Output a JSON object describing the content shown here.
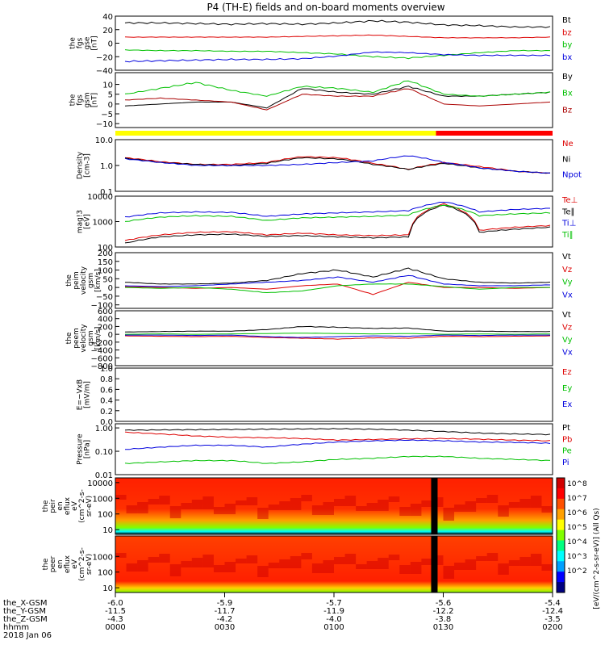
{
  "chart_data": {
    "title": "P4 (TH-E) fields and on-board moments overview",
    "type": "line",
    "x_range": [
      "00:00",
      "02:00"
    ],
    "date": "2018 Jan 06",
    "ephemeris": {
      "rows": [
        {
          "label": "the_X-GSM",
          "values": [
            "-6.0",
            "-5.9",
            "-5.7",
            "-5.6",
            "-5.4"
          ]
        },
        {
          "label": "the_Y-GSM",
          "values": [
            "-11.5",
            "-11.7",
            "-11.9",
            "-12.2",
            "-12.4"
          ]
        },
        {
          "label": "the_Z-GSM",
          "values": [
            "-4.3",
            "-4.2",
            "-4.0",
            "-3.8",
            "-3.5"
          ]
        },
        {
          "label": "hhmm",
          "values": [
            "0000",
            "0030",
            "0100",
            "0130",
            "0200"
          ]
        }
      ]
    },
    "panels": [
      {
        "ylabel": [
          "the",
          "fgs",
          "gse",
          "[nT]"
        ],
        "ylim": [
          -40,
          40
        ],
        "scale": "linear",
        "ticks": [
          "40",
          "20",
          "0",
          "−20",
          "−40"
        ],
        "tick_values": [
          40,
          20,
          0,
          -20,
          -40
        ],
        "series": [
          {
            "name": "Bt",
            "color": "#000000",
            "values": [
              30,
              30,
              29,
              28,
              29,
              28,
              30,
              33,
              31,
              27,
              26,
              24,
              24
            ]
          },
          {
            "name": "bz",
            "color": "#dd0000",
            "values": [
              9,
              9,
              9,
              9,
              9,
              10,
              11,
              12,
              10,
              8,
              8,
              8,
              9
            ]
          },
          {
            "name": "by",
            "color": "#00c000",
            "values": [
              -10,
              -11,
              -11,
              -12,
              -12,
              -14,
              -16,
              -20,
              -22,
              -18,
              -14,
              -11,
              -11
            ]
          },
          {
            "name": "bx",
            "color": "#0000dd",
            "values": [
              -27,
              -26,
              -25,
              -24,
              -24,
              -23,
              -19,
              -13,
              -14,
              -17,
              -18,
              -18,
              -18
            ]
          }
        ]
      },
      {
        "ylabel": [
          "the",
          "fgs",
          "gsm",
          "[nT]"
        ],
        "ylim": [
          -12,
          16
        ],
        "scale": "linear",
        "ticks": [
          "10",
          "5",
          "0",
          "−5",
          "−10"
        ],
        "tick_values": [
          10,
          5,
          0,
          -5,
          -10
        ],
        "series": [
          {
            "name": "By",
            "color": "#000000",
            "values": [
              -1,
              0,
              1,
              1,
              -2,
              8,
              6,
              5,
              9,
              4,
              4,
              5,
              6
            ]
          },
          {
            "name": "Bx",
            "color": "#00c000",
            "values": [
              5,
              8,
              11,
              7,
              4,
              9,
              8,
              6,
              12,
              5,
              4,
              5,
              6
            ]
          },
          {
            "name": "Bz",
            "color": "#aa0000",
            "values": [
              2,
              3,
              2,
              1,
              -3,
              5,
              4,
              4,
              8,
              0,
              -1,
              0,
              1
            ]
          }
        ]
      },
      {
        "ylabel": [
          "Density",
          "[cm-3]"
        ],
        "ylim": [
          0.1,
          10
        ],
        "scale": "log",
        "ticks": [
          "10.0",
          "1.0",
          "0.1"
        ],
        "tick_values": [
          10,
          1,
          0.1
        ],
        "series": [
          {
            "name": "Ne",
            "color": "#dd0000",
            "values": [
              2.0,
              1.4,
              1.1,
              1.1,
              1.3,
              2.2,
              2.0,
              1.2,
              0.7,
              1.3,
              0.9,
              0.6,
              0.5
            ]
          },
          {
            "name": "Ni",
            "color": "#000000",
            "values": [
              1.9,
              1.3,
              1.1,
              1.0,
              1.2,
              2.0,
              1.8,
              1.1,
              0.7,
              1.2,
              0.8,
              0.6,
              0.5
            ]
          },
          {
            "name": "Npot",
            "color": "#0000dd",
            "values": [
              1.8,
              1.3,
              1.0,
              1.0,
              1.0,
              1.1,
              1.3,
              1.5,
              2.4,
              1.3,
              0.8,
              0.6,
              0.5
            ]
          }
        ]
      },
      {
        "ylabel": [
          "mag!3",
          "[eV]"
        ],
        "ylim": [
          100,
          10000
        ],
        "scale": "log",
        "ticks": [
          "10000",
          "1000",
          "100"
        ],
        "tick_values": [
          10000,
          1000,
          100
        ],
        "series": [
          {
            "name": "Te⊥",
            "color": "#dd0000",
            "values": [
              180,
              300,
              380,
              400,
              300,
              350,
              300,
              280,
              300,
              5000,
              450,
              600,
              700
            ]
          },
          {
            "name": "Te∥",
            "color": "#000000",
            "values": [
              140,
              250,
              300,
              320,
              260,
              280,
              250,
              230,
              250,
              4500,
              380,
              500,
              600
            ]
          },
          {
            "name": "Ti⊥",
            "color": "#0000dd",
            "values": [
              1500,
              2200,
              2400,
              2300,
              1600,
              2000,
              2200,
              2400,
              2700,
              6000,
              2400,
              3000,
              3300
            ]
          },
          {
            "name": "Ti∥",
            "color": "#00c000",
            "values": [
              1000,
              1500,
              1700,
              1600,
              1100,
              1400,
              1500,
              1600,
              1800,
              4500,
              1700,
              2000,
              2200
            ]
          }
        ]
      },
      {
        "ylabel": [
          "the",
          "peim",
          "velocity",
          "gsm",
          "[km/s]"
        ],
        "ylim": [
          -120,
          200
        ],
        "scale": "linear",
        "ticks": [
          "200",
          "150",
          "100",
          "50",
          "0",
          "−50",
          "−100"
        ],
        "tick_values": [
          200,
          150,
          100,
          50,
          0,
          -50,
          -100
        ],
        "series": [
          {
            "name": "Vt",
            "color": "#000000",
            "values": [
              30,
              20,
              20,
              25,
              40,
              80,
              100,
              60,
              110,
              50,
              30,
              25,
              30
            ]
          },
          {
            "name": "Vz",
            "color": "#dd0000",
            "values": [
              5,
              0,
              -5,
              0,
              -10,
              10,
              20,
              -40,
              30,
              0,
              0,
              -5,
              0
            ]
          },
          {
            "name": "Vy",
            "color": "#00c000",
            "values": [
              0,
              -5,
              0,
              -10,
              -30,
              -20,
              10,
              20,
              20,
              5,
              -10,
              0,
              0
            ]
          },
          {
            "name": "Vx",
            "color": "#0000dd",
            "values": [
              10,
              5,
              10,
              20,
              30,
              40,
              60,
              30,
              70,
              20,
              10,
              10,
              15
            ]
          }
        ]
      },
      {
        "ylabel": [
          "the",
          "peem",
          "velocity",
          "gsm",
          "[km/s]"
        ],
        "ylim": [
          -800,
          600
        ],
        "scale": "linear",
        "ticks": [
          "600",
          "400",
          "200",
          "0",
          "−200",
          "−400",
          "−600",
          "−800"
        ],
        "tick_values": [
          600,
          400,
          200,
          0,
          -200,
          -400,
          -600,
          -800
        ],
        "series": [
          {
            "name": "Vt",
            "color": "#000000",
            "values": [
              60,
              70,
              80,
              80,
              120,
              200,
              180,
              150,
              160,
              80,
              80,
              70,
              70
            ]
          },
          {
            "name": "Vz",
            "color": "#dd0000",
            "values": [
              -40,
              -50,
              -60,
              -50,
              -80,
              -100,
              -120,
              -90,
              -100,
              -50,
              -60,
              -50,
              -40
            ]
          },
          {
            "name": "Vy",
            "color": "#00c000",
            "values": [
              0,
              10,
              0,
              10,
              20,
              30,
              20,
              10,
              20,
              0,
              10,
              0,
              10
            ]
          },
          {
            "name": "Vx",
            "color": "#0000dd",
            "values": [
              -20,
              -20,
              -30,
              -20,
              -60,
              -80,
              -60,
              -40,
              -50,
              -20,
              -30,
              -20,
              -20
            ]
          }
        ]
      },
      {
        "ylabel": [
          "E=−VxB",
          "[mV/m]"
        ],
        "ylim": [
          0,
          1
        ],
        "scale": "linear",
        "ticks": [
          "1.0",
          "0.8",
          "0.6",
          "0.4",
          "0.2",
          "0.0"
        ],
        "tick_values": [
          1.0,
          0.8,
          0.6,
          0.4,
          0.2,
          0.0
        ],
        "series": [
          {
            "name": "Ez",
            "color": "#dd0000",
            "values": []
          },
          {
            "name": "Ey",
            "color": "#00c000",
            "values": []
          },
          {
            "name": "Ex",
            "color": "#0000dd",
            "values": []
          }
        ]
      },
      {
        "ylabel": [
          "Pressure",
          "[nPa]"
        ],
        "ylim": [
          0.01,
          1.5
        ],
        "scale": "log",
        "ticks": [
          "1.00",
          "0.10",
          "0.01"
        ],
        "tick_values": [
          1,
          0.1,
          0.01
        ],
        "series": [
          {
            "name": "Pt",
            "color": "#000000",
            "values": [
              0.8,
              0.82,
              0.84,
              0.86,
              0.88,
              0.9,
              0.92,
              0.88,
              0.8,
              0.7,
              0.6,
              0.55,
              0.52
            ]
          },
          {
            "name": "Pb",
            "color": "#dd0000",
            "values": [
              0.65,
              0.55,
              0.45,
              0.4,
              0.38,
              0.35,
              0.3,
              0.32,
              0.34,
              0.35,
              0.33,
              0.3,
              0.28
            ]
          },
          {
            "name": "Pe",
            "color": "#00c000",
            "values": [
              0.03,
              0.035,
              0.04,
              0.04,
              0.03,
              0.035,
              0.045,
              0.05,
              0.06,
              0.06,
              0.05,
              0.045,
              0.04
            ]
          },
          {
            "name": "Pi",
            "color": "#0000dd",
            "values": [
              0.12,
              0.15,
              0.18,
              0.18,
              0.15,
              0.2,
              0.25,
              0.28,
              0.3,
              0.28,
              0.25,
              0.24,
              0.22
            ]
          }
        ]
      }
    ],
    "state_bar": {
      "colors": [
        "#ffff00",
        "#ff0000"
      ],
      "split_time": "01:28"
    },
    "spectrograms": [
      {
        "ylabel": [
          "the",
          "peir",
          "en",
          "eflux",
          "eV",
          "(cm^2-s-",
          "sr-eV)"
        ],
        "ticks": [
          "10000",
          "1000",
          "100",
          "10"
        ],
        "tick_values": [
          10000,
          1000,
          100,
          10
        ]
      },
      {
        "ylabel": [
          "the",
          "peer",
          "en",
          "eflux",
          "eV",
          "(cm^2-s-",
          "sr-eV)"
        ],
        "ticks": [
          "1000",
          "100",
          "10"
        ],
        "tick_values": [
          1000,
          100,
          10
        ]
      }
    ],
    "colorbar": {
      "label": "[eV/(cm^2-s-sr-eV)] (All Qs)",
      "ticks": [
        "10^8",
        "10^7",
        "10^6",
        "10^5",
        "10^4",
        "10^3",
        "10^2"
      ]
    }
  }
}
